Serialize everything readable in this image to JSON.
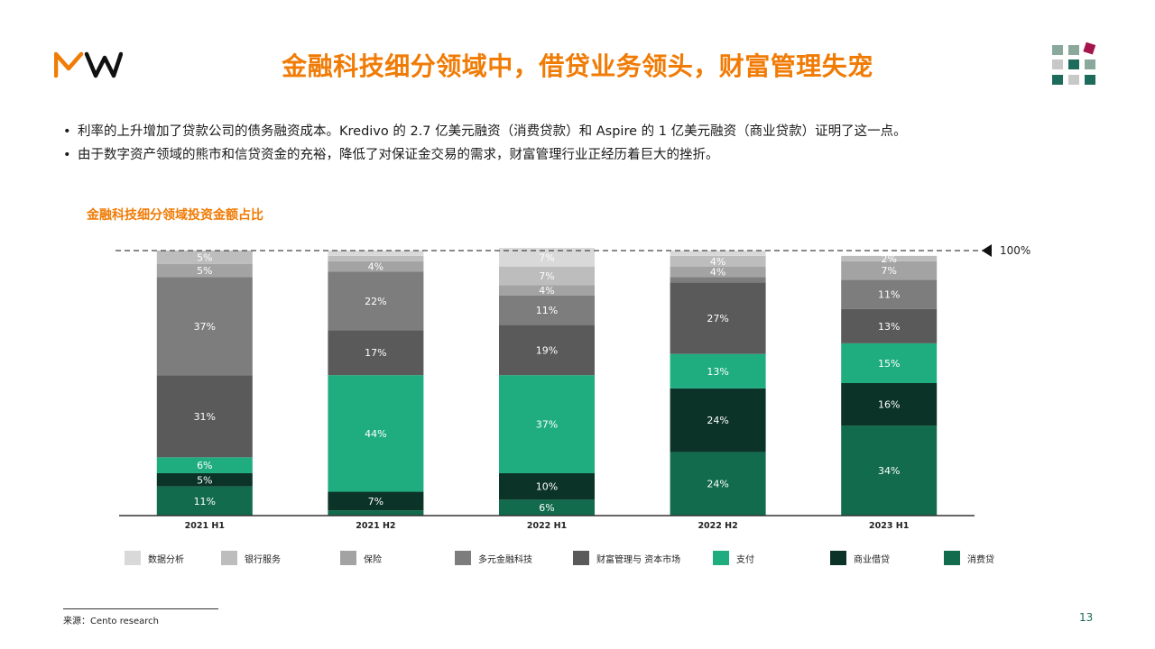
{
  "header": {
    "logo_text": "MW",
    "title": "金融科技细分领域中，借贷业务领头，财富管理失宠"
  },
  "bullets": [
    "利率的上升增加了贷款公司的债务融资成本。Kredivo 的 2.7 亿美元融资（消费贷款）和 Aspire 的 1 亿美元融资（商业贷款）证明了这一点。",
    "由于数字资产领域的熊市和信贷资金的充裕，降低了对保证金交易的需求，财富管理行业正经历着巨大的挫折。"
  ],
  "bullet_symbol": "•",
  "chart_title": "金融科技细分领域投资金额占比",
  "chart_data": {
    "type": "bar",
    "stacked": true,
    "categories": [
      "2021 H1",
      "2021 H2",
      "2022 H1",
      "2022 H2",
      "2023 H1"
    ],
    "series": [
      {
        "name": "消费贷",
        "color": "#126b4c",
        "values": [
          11,
          2,
          6,
          24,
          34
        ],
        "labels": [
          "11%",
          "",
          "6%",
          "24%",
          "34%"
        ]
      },
      {
        "name": "商业借贷",
        "color": "#0c3327",
        "values": [
          5,
          7,
          10,
          24,
          16
        ],
        "labels": [
          "5%",
          "7%",
          "10%",
          "24%",
          "16%"
        ]
      },
      {
        "name": "支付",
        "color": "#1fad80",
        "values": [
          6,
          44,
          37,
          13,
          15
        ],
        "labels": [
          "6%",
          "44%",
          "37%",
          "13%",
          "15%"
        ]
      },
      {
        "name": "财富管理与 资本市场",
        "color": "#5a5a5a",
        "values": [
          31,
          17,
          19,
          27,
          13
        ],
        "labels": [
          "31%",
          "17%",
          "19%",
          "27%",
          "13%"
        ]
      },
      {
        "name": "多元金融科技",
        "color": "#7d7d7d",
        "values": [
          37,
          22,
          11,
          2,
          11
        ],
        "labels": [
          "37%",
          "22%",
          "11%",
          "",
          "11%"
        ]
      },
      {
        "name": "保险",
        "color": "#a3a3a3",
        "values": [
          5,
          4,
          4,
          4,
          7
        ],
        "labels": [
          "5%",
          "4%",
          "4%",
          "4%",
          "7%"
        ]
      },
      {
        "name": "银行服务",
        "color": "#bdbdbd",
        "values": [
          5,
          2,
          7,
          4,
          2
        ],
        "labels": [
          "5%",
          "",
          "7%",
          "4%",
          "2%"
        ]
      },
      {
        "name": "数据分析",
        "color": "#d9d9d9",
        "values": [
          0,
          2,
          7,
          2,
          0
        ],
        "labels": [
          "",
          "",
          "7%",
          "",
          ""
        ]
      }
    ],
    "ylim": [
      0,
      100
    ],
    "reference_line": {
      "value": 100,
      "label": "100%"
    },
    "legend_position": "bottom",
    "legend_order": [
      "数据分析",
      "银行服务",
      "保险",
      "多元金融科技",
      "财富管理与 资本市场",
      "支付",
      "商业借贷",
      "消费贷"
    ]
  },
  "footer": {
    "source": "来源：Cento research",
    "page_number": "13"
  },
  "colors": {
    "accent": "#f07b05",
    "brand_green": "#1d6b5a",
    "brand_magenta": "#a3154b"
  }
}
